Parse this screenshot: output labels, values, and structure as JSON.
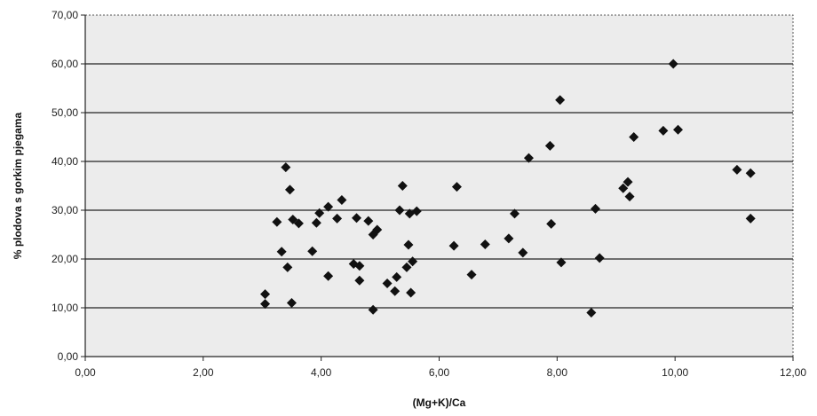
{
  "chart_data": {
    "type": "scatter",
    "title": "",
    "xlabel": "(Mg+K)/Ca",
    "ylabel": "% plodova s gorkim pjegama",
    "xlim": [
      0,
      12
    ],
    "ylim": [
      0,
      70
    ],
    "x_ticks": [
      "0,00",
      "2,00",
      "4,00",
      "6,00",
      "8,00",
      "10,00",
      "12,00"
    ],
    "y_ticks": [
      "0,00",
      "10,00",
      "20,00",
      "30,00",
      "40,00",
      "50,00",
      "60,00",
      "70,00"
    ],
    "grid": "horizontal",
    "legend": "none",
    "marker": "diamond",
    "marker_color": "#111111",
    "points": [
      {
        "x": 3.05,
        "y": 12.8
      },
      {
        "x": 3.05,
        "y": 10.8
      },
      {
        "x": 3.25,
        "y": 27.6
      },
      {
        "x": 3.33,
        "y": 21.5
      },
      {
        "x": 3.4,
        "y": 38.8
      },
      {
        "x": 3.43,
        "y": 18.3
      },
      {
        "x": 3.47,
        "y": 34.2
      },
      {
        "x": 3.5,
        "y": 11.0
      },
      {
        "x": 3.52,
        "y": 28.1
      },
      {
        "x": 3.62,
        "y": 27.3
      },
      {
        "x": 3.85,
        "y": 21.6
      },
      {
        "x": 3.92,
        "y": 27.4
      },
      {
        "x": 3.97,
        "y": 29.4
      },
      {
        "x": 4.12,
        "y": 30.7
      },
      {
        "x": 4.12,
        "y": 16.5
      },
      {
        "x": 4.27,
        "y": 28.3
      },
      {
        "x": 4.35,
        "y": 32.1
      },
      {
        "x": 4.55,
        "y": 19.0
      },
      {
        "x": 4.6,
        "y": 28.4
      },
      {
        "x": 4.65,
        "y": 18.6
      },
      {
        "x": 4.65,
        "y": 15.6
      },
      {
        "x": 4.8,
        "y": 27.8
      },
      {
        "x": 4.88,
        "y": 25.0
      },
      {
        "x": 4.88,
        "y": 9.6
      },
      {
        "x": 4.95,
        "y": 26.0
      },
      {
        "x": 5.12,
        "y": 15.0
      },
      {
        "x": 5.25,
        "y": 13.4
      },
      {
        "x": 5.28,
        "y": 16.3
      },
      {
        "x": 5.33,
        "y": 30.0
      },
      {
        "x": 5.38,
        "y": 35.0
      },
      {
        "x": 5.45,
        "y": 18.3
      },
      {
        "x": 5.48,
        "y": 22.9
      },
      {
        "x": 5.5,
        "y": 29.3
      },
      {
        "x": 5.52,
        "y": 13.1
      },
      {
        "x": 5.55,
        "y": 19.5
      },
      {
        "x": 5.62,
        "y": 29.8
      },
      {
        "x": 6.25,
        "y": 22.7
      },
      {
        "x": 6.3,
        "y": 34.8
      },
      {
        "x": 6.55,
        "y": 16.8
      },
      {
        "x": 6.78,
        "y": 23.0
      },
      {
        "x": 7.18,
        "y": 24.2
      },
      {
        "x": 7.28,
        "y": 29.3
      },
      {
        "x": 7.42,
        "y": 21.3
      },
      {
        "x": 7.52,
        "y": 40.7
      },
      {
        "x": 7.88,
        "y": 43.2
      },
      {
        "x": 7.9,
        "y": 27.2
      },
      {
        "x": 8.05,
        "y": 52.6
      },
      {
        "x": 8.07,
        "y": 19.3
      },
      {
        "x": 8.58,
        "y": 9.0
      },
      {
        "x": 8.65,
        "y": 30.3
      },
      {
        "x": 8.72,
        "y": 20.2
      },
      {
        "x": 9.12,
        "y": 34.5
      },
      {
        "x": 9.2,
        "y": 35.8
      },
      {
        "x": 9.23,
        "y": 32.8
      },
      {
        "x": 9.3,
        "y": 45.0
      },
      {
        "x": 9.8,
        "y": 46.3
      },
      {
        "x": 9.97,
        "y": 60.0
      },
      {
        "x": 10.05,
        "y": 46.5
      },
      {
        "x": 11.05,
        "y": 38.3
      },
      {
        "x": 11.28,
        "y": 37.6
      },
      {
        "x": 11.28,
        "y": 28.3
      }
    ]
  }
}
